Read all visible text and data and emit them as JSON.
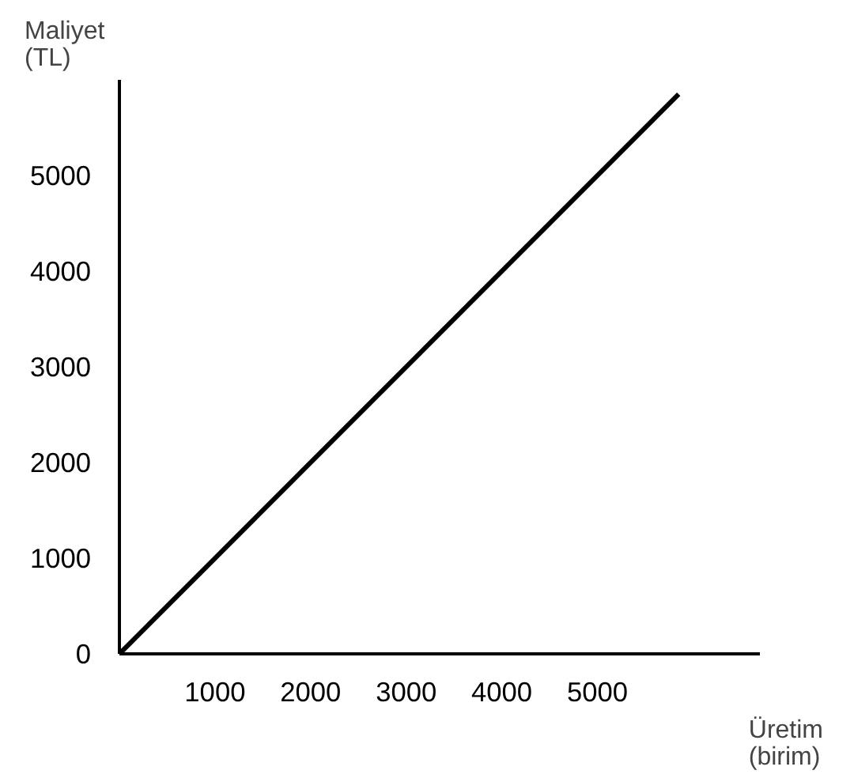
{
  "chart_data": {
    "type": "line",
    "xlabel": "Üretim\n(birim)",
    "ylabel": "Maliyet\n(TL)",
    "x": [
      0,
      5850
    ],
    "series": [
      {
        "color": "#000000",
        "values": [
          0,
          5850
        ]
      }
    ],
    "xlim": [
      0,
      6700
    ],
    "ylim": [
      0,
      6000
    ],
    "xticks": [
      1000,
      2000,
      3000,
      4000,
      5000
    ],
    "yticks": [
      0,
      1000,
      2000,
      3000,
      4000,
      5000
    ],
    "grid": false
  }
}
